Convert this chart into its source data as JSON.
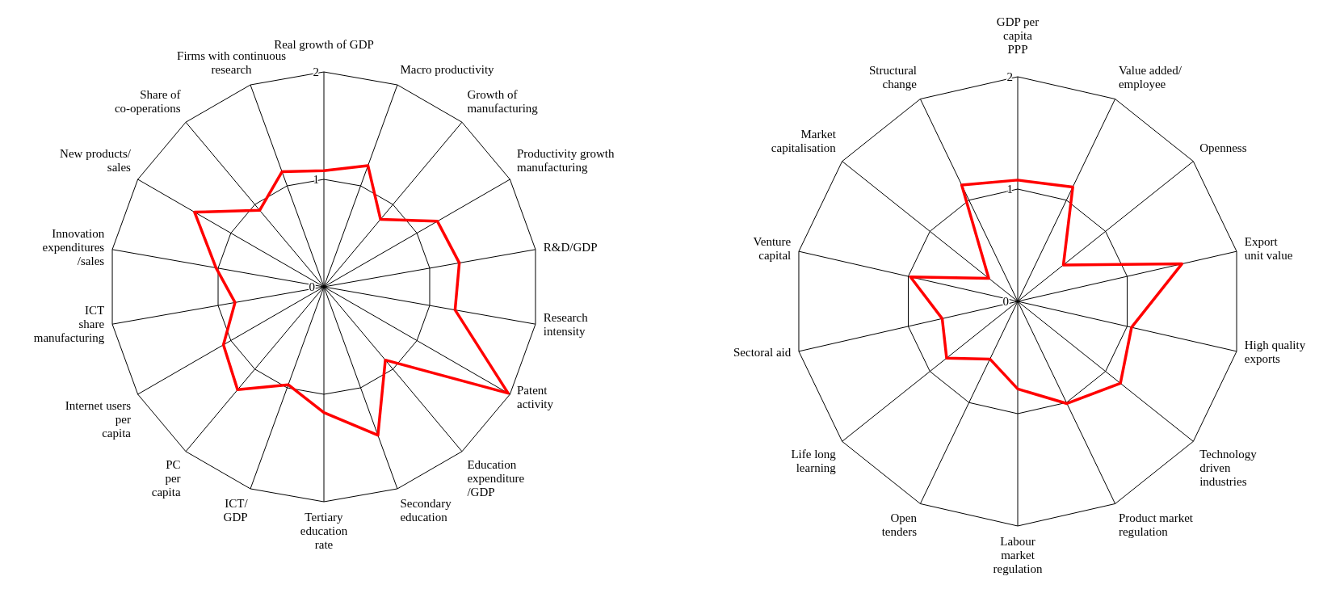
{
  "chart_data": [
    {
      "type": "radar",
      "categories": [
        "Real growth of GDP",
        "Macro productivity",
        "Growth of\nmanufacturing",
        "Productivity growth\nmanufacturing",
        "R&D/GDP",
        "Research\nintensity",
        "Patent\nactivity",
        "Education\nexpenditure\n/GDP",
        "Secondary\neducation",
        "Tertiary\neducation\nrate",
        "ICT/\nGDP",
        "PC\nper\ncapita",
        "Internet users\nper\ncapita",
        "ICT\nshare\nmanufacturing",
        "Innovation\nexpenditures\n/sales",
        "New products/\nsales",
        "Share of\nco-operations",
        "Firms with continuous\nresearch"
      ],
      "series": [
        {
          "color": "#ff0000",
          "values": [
            1.08,
            1.2,
            0.82,
            1.22,
            1.28,
            1.24,
            1.98,
            0.89,
            1.47,
            1.17,
            0.97,
            1.25,
            1.08,
            0.84,
            1.02,
            1.39,
            0.93,
            1.14
          ]
        }
      ],
      "ylim": [
        0,
        2
      ],
      "yticks": [
        0,
        1,
        2
      ],
      "grid": true
    },
    {
      "type": "radar",
      "categories": [
        "GDP per\ncapita\nPPP",
        "Value added/\nemployee",
        "Openness",
        "Export\nunit value",
        "High quality\nexports",
        "Technology\ndriven\nindustries",
        "Product market\nregulation",
        "Labour\nmarket\nregulation",
        "Open\ntenders",
        "Life long\nlearning",
        "Sectoral aid",
        "Venture\ncapital",
        "Market\ncapitalisation",
        "Structural\nchange"
      ],
      "series": [
        {
          "color": "#ff0000",
          "values": [
            1.08,
            1.13,
            0.52,
            1.5,
            1.04,
            1.17,
            1.01,
            0.78,
            0.57,
            0.81,
            0.69,
            0.98,
            0.33,
            1.15
          ]
        }
      ],
      "ylim": [
        0,
        2
      ],
      "yticks": [
        0,
        1,
        2
      ],
      "grid": true
    }
  ]
}
